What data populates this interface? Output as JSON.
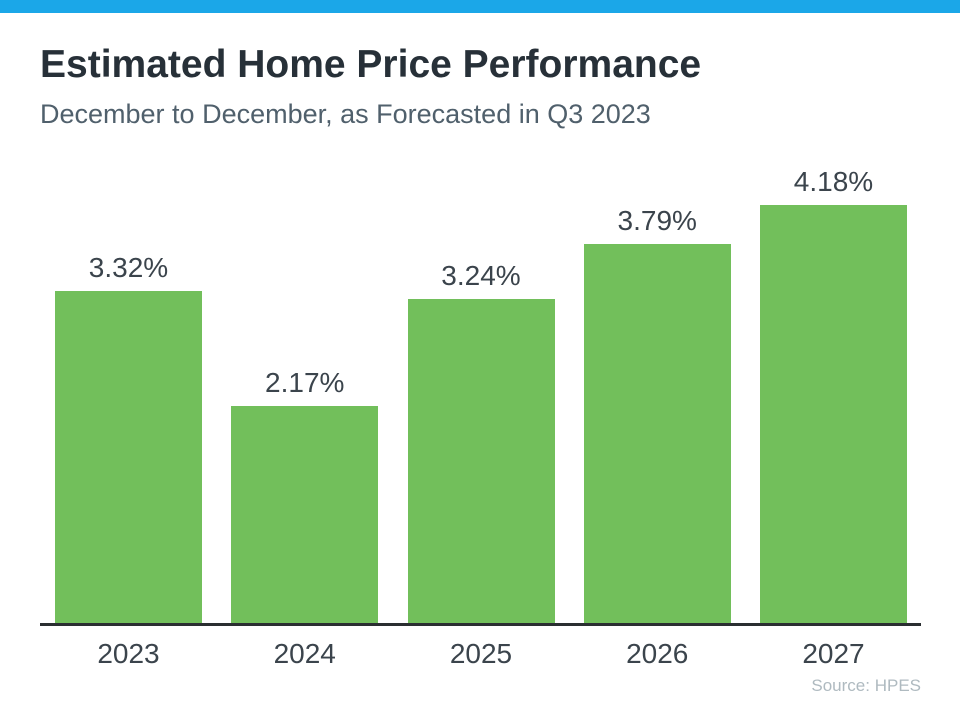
{
  "accent": {
    "bar_color": "#1BA7E8"
  },
  "header": {
    "title": "Estimated Home Price Performance",
    "subtitle": "December to December, as Forecasted in Q3 2023"
  },
  "chart_data": {
    "type": "bar",
    "title": "Estimated Home Price Performance",
    "subtitle": "December to December, as Forecasted in Q3 2023",
    "categories": [
      "2023",
      "2024",
      "2025",
      "2026",
      "2027"
    ],
    "values": [
      3.32,
      2.17,
      3.24,
      3.79,
      4.18
    ],
    "value_labels": [
      "3.32%",
      "2.17%",
      "3.24%",
      "3.79%",
      "4.18%"
    ],
    "xlabel": "",
    "ylabel": "",
    "ylim": [
      0,
      4.66
    ],
    "grid": false,
    "legend": "none",
    "data_labels": "above",
    "bar_color": "#72BF5B",
    "text_color": "#3B444C",
    "axis_color": "#2A2E31"
  },
  "footer": {
    "source": "Source: HPES"
  }
}
